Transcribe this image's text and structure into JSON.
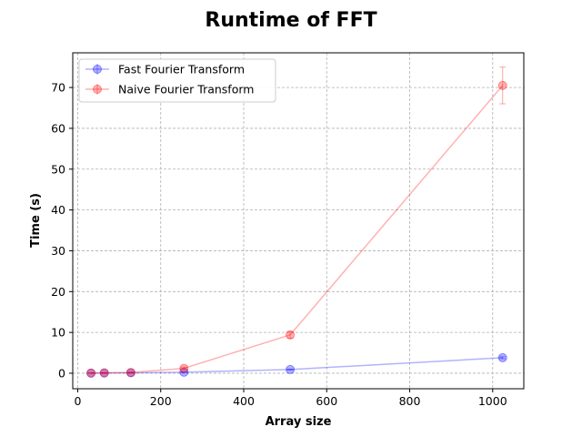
{
  "chart_data": {
    "type": "line",
    "title": "Runtime of FFT",
    "xlabel": "Array size",
    "ylabel": "Time (s)",
    "xlim": [
      -12,
      1075
    ],
    "ylim": [
      -3.8,
      78.5
    ],
    "xticks": [
      0,
      200,
      400,
      600,
      800,
      1000
    ],
    "yticks": [
      0,
      10,
      20,
      30,
      40,
      50,
      60,
      70
    ],
    "grid": true,
    "legend_position": "top-left",
    "series": [
      {
        "name": "Fast Fourier Transform",
        "color": "#0000ff",
        "x": [
          32,
          64,
          128,
          256,
          512,
          1024
        ],
        "y": [
          0.02,
          0.05,
          0.1,
          0.25,
          0.9,
          3.8
        ],
        "err": [
          0.01,
          0.01,
          0.02,
          0.05,
          0.1,
          0.25
        ]
      },
      {
        "name": "Naive Fourier Transform",
        "color": "#ff0000",
        "x": [
          32,
          64,
          128,
          256,
          512,
          1024
        ],
        "y": [
          0.05,
          0.1,
          0.2,
          1.2,
          9.4,
          70.5
        ],
        "err": [
          0.01,
          0.02,
          0.05,
          0.3,
          0.8,
          4.5
        ]
      }
    ]
  }
}
